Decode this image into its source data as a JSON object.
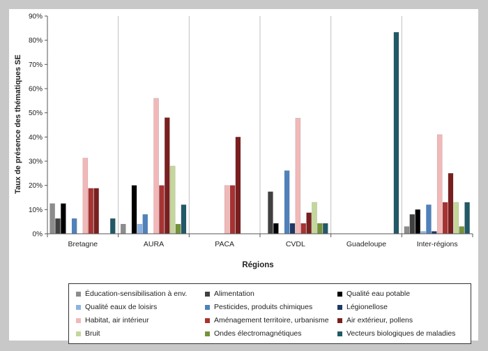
{
  "chart_data": {
    "type": "bar",
    "xlabel": "Régions",
    "ylabel": "Taux de présence des thématiques SE",
    "ylim": [
      0,
      90
    ],
    "yticks": [
      "0%",
      "10%",
      "20%",
      "30%",
      "40%",
      "50%",
      "60%",
      "70%",
      "80%",
      "90%"
    ],
    "grid": "vertical category separators",
    "legend_position": "bottom",
    "categories": [
      "Bretagne",
      "AURA",
      "PACA",
      "CVDL",
      "Guadeloupe",
      "Inter-régions"
    ],
    "series": [
      {
        "name": "Éducation-sensibilisation à env.",
        "color": "#8c8c8c",
        "values": [
          12.5,
          4,
          0,
          0,
          0,
          3
        ]
      },
      {
        "name": "Alimentation",
        "color": "#404040",
        "values": [
          6.3,
          0,
          0,
          17.4,
          0,
          8
        ]
      },
      {
        "name": "Qualité eau potable",
        "color": "#000000",
        "values": [
          12.5,
          20,
          0,
          4.3,
          0,
          10
        ]
      },
      {
        "name": "Qualité eaux de loisirs",
        "color": "#8db3e2",
        "values": [
          0,
          4,
          0,
          0,
          0,
          1
        ]
      },
      {
        "name": "Pesticides, produits chimiques",
        "color": "#4f81bd",
        "values": [
          6.3,
          8,
          0,
          26.1,
          0,
          12
        ]
      },
      {
        "name": "Légionellose",
        "color": "#1f3864",
        "values": [
          0,
          0,
          0,
          4.3,
          0,
          1
        ]
      },
      {
        "name": "Habitat, air intérieur",
        "color": "#f2b8b8",
        "values": [
          31.3,
          56,
          20,
          47.8,
          0,
          41
        ]
      },
      {
        "name": "Aménagement territoire, urbanisme",
        "color": "#a83232",
        "values": [
          18.8,
          20,
          20,
          4.3,
          0,
          13
        ]
      },
      {
        "name": "Air extérieur, pollens",
        "color": "#7a1f1f",
        "values": [
          18.8,
          48,
          40,
          8.7,
          0,
          25
        ]
      },
      {
        "name": "Bruit",
        "color": "#c4d79b",
        "values": [
          0,
          28,
          0,
          13,
          0,
          13
        ]
      },
      {
        "name": "Ondes électromagnétiques",
        "color": "#76933c",
        "values": [
          0,
          4,
          0,
          4.3,
          0,
          3
        ]
      },
      {
        "name": "Vecteurs biologiques de maladies",
        "color": "#215967",
        "values": [
          6.3,
          12,
          0,
          4.3,
          83.3,
          13
        ]
      }
    ]
  }
}
